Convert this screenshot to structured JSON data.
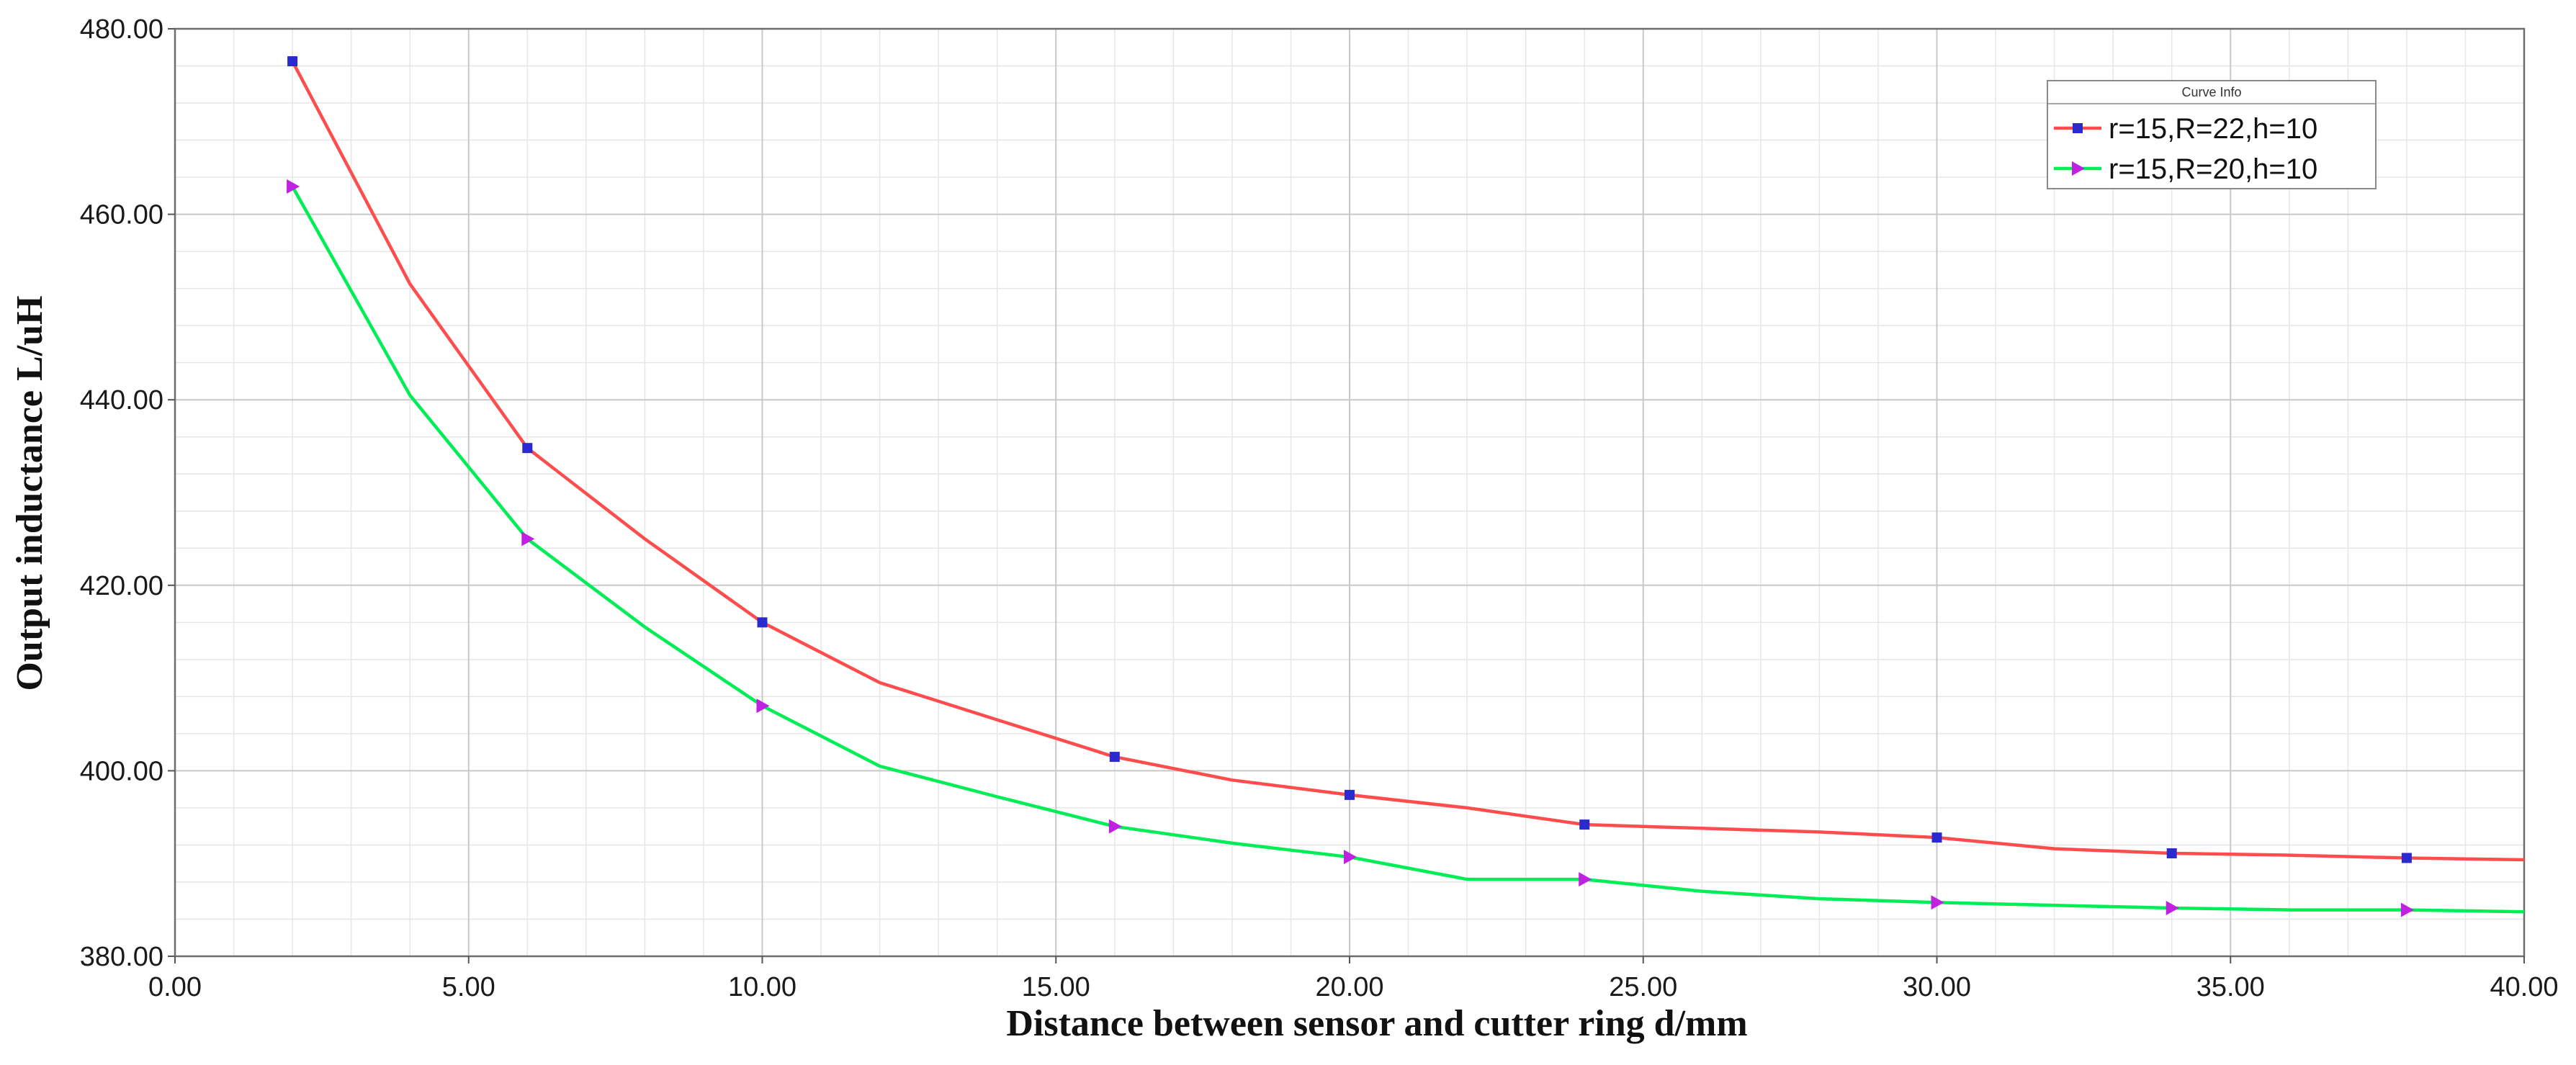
{
  "chart_data": {
    "type": "line",
    "title": "",
    "xlabel": "Distance between sensor and cutter ring  d/mm",
    "ylabel": "Output inductance  L/uH",
    "xlim": [
      0,
      40
    ],
    "ylim": [
      380,
      480
    ],
    "x_ticks": [
      0,
      5,
      10,
      15,
      20,
      25,
      30,
      35,
      40
    ],
    "y_ticks": [
      380,
      400,
      420,
      440,
      460,
      480
    ],
    "x_tick_labels": [
      "0.00",
      "5.00",
      "10.00",
      "15.00",
      "20.00",
      "25.00",
      "30.00",
      "35.00",
      "40.00"
    ],
    "y_tick_labels": [
      "380.00",
      "400.00",
      "420.00",
      "440.00",
      "460.00",
      "480.00"
    ],
    "grid": true,
    "legend": {
      "title": "Curve Info",
      "position": "top-right"
    },
    "series": [
      {
        "name": "r=15,R=22,h=10",
        "color": "#ff4d4d",
        "marker": "square",
        "marker_color": "#2a2ad0",
        "line_points": [
          [
            2,
            476.5
          ],
          [
            4,
            452.5
          ],
          [
            6,
            434.8
          ],
          [
            8,
            425.0
          ],
          [
            10,
            416.0
          ],
          [
            12,
            409.5
          ],
          [
            14,
            405.5
          ],
          [
            16,
            401.5
          ],
          [
            18,
            399.0
          ],
          [
            20,
            397.4
          ],
          [
            22,
            396.0
          ],
          [
            24,
            394.2
          ],
          [
            26,
            393.8
          ],
          [
            28,
            393.4
          ],
          [
            30,
            392.8
          ],
          [
            32,
            391.6
          ],
          [
            34,
            391.1
          ],
          [
            36,
            390.9
          ],
          [
            38,
            390.6
          ],
          [
            40,
            390.4
          ]
        ],
        "marker_points": [
          [
            2,
            476.5
          ],
          [
            6,
            434.8
          ],
          [
            10,
            416.0
          ],
          [
            16,
            401.5
          ],
          [
            20,
            397.4
          ],
          [
            24,
            394.2
          ],
          [
            30,
            392.8
          ],
          [
            34,
            391.1
          ],
          [
            38,
            390.6
          ]
        ]
      },
      {
        "name": "r=15,R=20,h=10",
        "color": "#00ee55",
        "marker": "triangle-right",
        "marker_color": "#c020e0",
        "line_points": [
          [
            2,
            463.0
          ],
          [
            4,
            440.5
          ],
          [
            6,
            425.0
          ],
          [
            8,
            415.5
          ],
          [
            10,
            407.0
          ],
          [
            12,
            400.5
          ],
          [
            14,
            397.2
          ],
          [
            16,
            394.0
          ],
          [
            18,
            392.2
          ],
          [
            20,
            390.7
          ],
          [
            22,
            388.3
          ],
          [
            24,
            388.3
          ],
          [
            26,
            387.0
          ],
          [
            28,
            386.2
          ],
          [
            30,
            385.8
          ],
          [
            32,
            385.5
          ],
          [
            34,
            385.2
          ],
          [
            36,
            385.0
          ],
          [
            38,
            385.0
          ],
          [
            40,
            384.8
          ]
        ],
        "marker_points": [
          [
            2,
            463.0
          ],
          [
            6,
            425.0
          ],
          [
            10,
            407.0
          ],
          [
            16,
            394.0
          ],
          [
            20,
            390.7
          ],
          [
            24,
            388.3
          ],
          [
            30,
            385.8
          ],
          [
            34,
            385.2
          ],
          [
            38,
            385.0
          ]
        ]
      }
    ]
  }
}
